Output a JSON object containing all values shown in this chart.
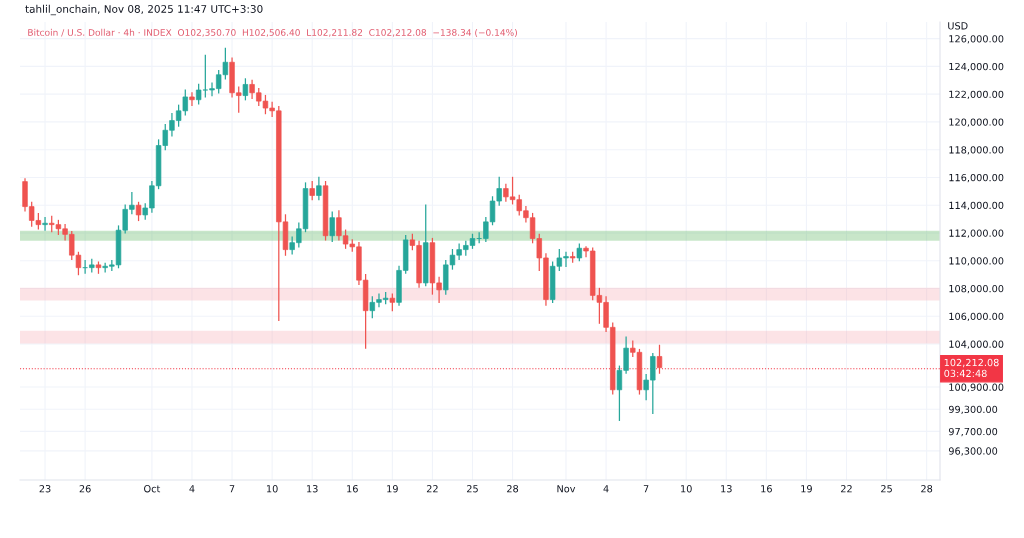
{
  "chart_data": {
    "type": "candlestick",
    "title": "tahlil_onchain, Nov 08, 2025 11:47 UTC+3:30",
    "subtitle": "Bitcoin / U.S. Dollar · 4h · INDEX  O102,350.70  H102,506.40  L102,211.82  C102,212.08  −138.34 (−0.14%)",
    "ylabel": "USD",
    "x": [
      "2025-09-21T12:00",
      "2025-09-22T00:00",
      "2025-09-22T12:00",
      "2025-09-23T00:00",
      "2025-09-23T12:00",
      "2025-09-24T00:00",
      "2025-09-24T12:00",
      "2025-09-25T00:00",
      "2025-09-25T12:00",
      "2025-09-26T00:00",
      "2025-09-26T12:00",
      "2025-09-27T00:00",
      "2025-09-27T12:00",
      "2025-09-28T00:00",
      "2025-09-28T12:00",
      "2025-09-29T00:00",
      "2025-09-29T12:00",
      "2025-09-30T00:00",
      "2025-09-30T12:00",
      "2025-10-01T00:00",
      "2025-10-01T12:00",
      "2025-10-02T00:00",
      "2025-10-02T12:00",
      "2025-10-03T00:00",
      "2025-10-03T12:00",
      "2025-10-04T00:00",
      "2025-10-04T12:00",
      "2025-10-05T00:00",
      "2025-10-05T12:00",
      "2025-10-06T00:00",
      "2025-10-06T12:00",
      "2025-10-07T00:00",
      "2025-10-07T12:00",
      "2025-10-08T00:00",
      "2025-10-08T12:00",
      "2025-10-09T00:00",
      "2025-10-09T12:00",
      "2025-10-10T00:00",
      "2025-10-10T12:00",
      "2025-10-11T00:00",
      "2025-10-11T12:00",
      "2025-10-12T00:00",
      "2025-10-12T12:00",
      "2025-10-13T00:00",
      "2025-10-13T12:00",
      "2025-10-14T00:00",
      "2025-10-14T12:00",
      "2025-10-15T00:00",
      "2025-10-15T12:00",
      "2025-10-16T00:00",
      "2025-10-16T12:00",
      "2025-10-17T00:00",
      "2025-10-17T12:00",
      "2025-10-18T00:00",
      "2025-10-18T12:00",
      "2025-10-19T00:00",
      "2025-10-19T12:00",
      "2025-10-20T00:00",
      "2025-10-20T12:00",
      "2025-10-21T00:00",
      "2025-10-21T12:00",
      "2025-10-22T00:00",
      "2025-10-22T12:00",
      "2025-10-23T00:00",
      "2025-10-23T12:00",
      "2025-10-24T00:00",
      "2025-10-24T12:00",
      "2025-10-25T00:00",
      "2025-10-25T12:00",
      "2025-10-26T00:00",
      "2025-10-26T12:00",
      "2025-10-27T00:00",
      "2025-10-27T12:00",
      "2025-10-28T00:00",
      "2025-10-28T12:00",
      "2025-10-29T00:00",
      "2025-10-29T12:00",
      "2025-10-30T00:00",
      "2025-10-30T12:00",
      "2025-10-31T00:00",
      "2025-10-31T12:00",
      "2025-11-01T00:00",
      "2025-11-01T12:00",
      "2025-11-02T00:00",
      "2025-11-02T12:00",
      "2025-11-03T00:00",
      "2025-11-03T12:00",
      "2025-11-04T00:00",
      "2025-11-04T12:00",
      "2025-11-05T00:00",
      "2025-11-05T12:00",
      "2025-11-06T00:00",
      "2025-11-06T12:00",
      "2025-11-07T00:00",
      "2025-11-07T12:00",
      "2025-11-08T00:00"
    ],
    "ohlc": [
      [
        115700,
        115900,
        113600,
        113900
      ],
      [
        113900,
        114200,
        112500,
        112900
      ],
      [
        112900,
        113400,
        112300,
        112600
      ],
      [
        112600,
        113100,
        112200,
        112700
      ],
      [
        112700,
        113200,
        112100,
        112600
      ],
      [
        112600,
        112900,
        111900,
        112300
      ],
      [
        112300,
        112600,
        111500,
        111900
      ],
      [
        111900,
        112100,
        110100,
        110400
      ],
      [
        110400,
        110600,
        109000,
        109500
      ],
      [
        109500,
        110000,
        109100,
        109500
      ],
      [
        109500,
        110100,
        109200,
        109700
      ],
      [
        109700,
        109900,
        109100,
        109500
      ],
      [
        109500,
        109800,
        109200,
        109600
      ],
      [
        109600,
        110000,
        109300,
        109700
      ],
      [
        109700,
        112500,
        109500,
        112200
      ],
      [
        112200,
        114000,
        112000,
        113700
      ],
      [
        113700,
        114900,
        113400,
        114000
      ],
      [
        114000,
        114200,
        112900,
        113300
      ],
      [
        113300,
        114100,
        113000,
        113800
      ],
      [
        113800,
        115700,
        113500,
        115400
      ],
      [
        115400,
        118700,
        115200,
        118300
      ],
      [
        118300,
        119800,
        118000,
        119400
      ],
      [
        119400,
        120600,
        119000,
        120100
      ],
      [
        120100,
        121200,
        119700,
        120800
      ],
      [
        120800,
        122300,
        120500,
        121800
      ],
      [
        121800,
        122100,
        121200,
        121600
      ],
      [
        121600,
        122700,
        121300,
        122300
      ],
      [
        122300,
        124800,
        121800,
        122300
      ],
      [
        122300,
        122800,
        121900,
        122400
      ],
      [
        122400,
        123700,
        122100,
        123400
      ],
      [
        123400,
        125300,
        123100,
        124300
      ],
      [
        124300,
        124600,
        121800,
        122100
      ],
      [
        122100,
        122500,
        120700,
        121900
      ],
      [
        121900,
        123100,
        121600,
        122700
      ],
      [
        122700,
        123000,
        121700,
        122100
      ],
      [
        122100,
        122400,
        121200,
        121500
      ],
      [
        121500,
        121900,
        120600,
        121000
      ],
      [
        121000,
        121400,
        120400,
        120800
      ],
      [
        120800,
        121100,
        105700,
        112800
      ],
      [
        112800,
        113300,
        110400,
        110800
      ],
      [
        110800,
        111700,
        110500,
        111300
      ],
      [
        111300,
        112700,
        111000,
        112300
      ],
      [
        112300,
        115600,
        112100,
        115200
      ],
      [
        115200,
        115700,
        114400,
        114700
      ],
      [
        114700,
        116000,
        114400,
        115400
      ],
      [
        115400,
        115700,
        111500,
        111800
      ],
      [
        111800,
        113500,
        111400,
        113100
      ],
      [
        113100,
        113600,
        111500,
        111800
      ],
      [
        111800,
        112200,
        110900,
        111200
      ],
      [
        111200,
        111500,
        110700,
        111000
      ],
      [
        111000,
        111300,
        108300,
        108600
      ],
      [
        108600,
        109000,
        103700,
        106400
      ],
      [
        106400,
        107400,
        105900,
        107000
      ],
      [
        107000,
        107600,
        106700,
        107200
      ],
      [
        107200,
        107700,
        106900,
        107300
      ],
      [
        107300,
        107600,
        106400,
        107000
      ],
      [
        107000,
        109600,
        106800,
        109300
      ],
      [
        109300,
        111800,
        109100,
        111500
      ],
      [
        111500,
        111900,
        110800,
        111100
      ],
      [
        111100,
        111400,
        108100,
        108400
      ],
      [
        108400,
        114000,
        108200,
        111300
      ],
      [
        111300,
        111600,
        107600,
        108400
      ],
      [
        108400,
        108800,
        107000,
        107900
      ],
      [
        107900,
        110000,
        107600,
        109700
      ],
      [
        109700,
        110800,
        109400,
        110400
      ],
      [
        110400,
        111200,
        110100,
        110800
      ],
      [
        110800,
        111400,
        110400,
        111100
      ],
      [
        111100,
        111900,
        110900,
        111600
      ],
      [
        111600,
        112000,
        111300,
        111600
      ],
      [
        111600,
        113100,
        111400,
        112800
      ],
      [
        112800,
        114600,
        112600,
        114300
      ],
      [
        114300,
        116000,
        114000,
        115200
      ],
      [
        115200,
        115500,
        114300,
        114600
      ],
      [
        114600,
        116000,
        114100,
        114400
      ],
      [
        114400,
        114700,
        113300,
        113600
      ],
      [
        113600,
        113900,
        112800,
        113100
      ],
      [
        113100,
        113400,
        111300,
        111600
      ],
      [
        111600,
        111900,
        109300,
        110200
      ],
      [
        110200,
        110500,
        106800,
        107200
      ],
      [
        107200,
        109900,
        107000,
        109600
      ],
      [
        109600,
        110800,
        109300,
        110200
      ],
      [
        110200,
        110600,
        109600,
        110300
      ],
      [
        110300,
        110600,
        109900,
        110200
      ],
      [
        110200,
        111200,
        110000,
        110900
      ],
      [
        110900,
        111000,
        110300,
        110700
      ],
      [
        110700,
        110900,
        107200,
        107500
      ],
      [
        107500,
        108000,
        105500,
        107000
      ],
      [
        107000,
        107400,
        104900,
        105200
      ],
      [
        105200,
        105500,
        100400,
        100700
      ],
      [
        100700,
        102400,
        98500,
        102100
      ],
      [
        102100,
        104500,
        101900,
        103700
      ],
      [
        103700,
        104200,
        103100,
        103400
      ],
      [
        103400,
        103600,
        100400,
        100700
      ],
      [
        100700,
        101800,
        100000,
        101400
      ],
      [
        101400,
        103300,
        99000,
        103100
      ],
      [
        103100,
        103900,
        101900,
        102300
      ]
    ],
    "xlim": [
      "2025-09-21T03:00",
      "2025-11-29T00:00"
    ],
    "xticks": [
      {
        "value": "2025-09-23",
        "label": "23"
      },
      {
        "value": "2025-09-26",
        "label": "26"
      },
      {
        "value": "2025-10-01",
        "label": "Oct"
      },
      {
        "value": "2025-10-04",
        "label": "4"
      },
      {
        "value": "2025-10-07",
        "label": "7"
      },
      {
        "value": "2025-10-10",
        "label": "10"
      },
      {
        "value": "2025-10-13",
        "label": "13"
      },
      {
        "value": "2025-10-16",
        "label": "16"
      },
      {
        "value": "2025-10-19",
        "label": "19"
      },
      {
        "value": "2025-10-22",
        "label": "22"
      },
      {
        "value": "2025-10-25",
        "label": "25"
      },
      {
        "value": "2025-10-28",
        "label": "28"
      },
      {
        "value": "2025-11-01",
        "label": "Nov"
      },
      {
        "value": "2025-11-04",
        "label": "4"
      },
      {
        "value": "2025-11-07",
        "label": "7"
      },
      {
        "value": "2025-11-10",
        "label": "10"
      },
      {
        "value": "2025-11-13",
        "label": "13"
      },
      {
        "value": "2025-11-16",
        "label": "16"
      },
      {
        "value": "2025-11-19",
        "label": "19"
      },
      {
        "value": "2025-11-22",
        "label": "22"
      },
      {
        "value": "2025-11-25",
        "label": "25"
      },
      {
        "value": "2025-11-28",
        "label": "28"
      }
    ],
    "ylim": [
      94200,
      127200
    ],
    "yticks": [
      {
        "value": 126000,
        "label": "126,000.00"
      },
      {
        "value": 124000,
        "label": "124,000.00"
      },
      {
        "value": 122000,
        "label": "122,000.00"
      },
      {
        "value": 120000,
        "label": "120,000.00"
      },
      {
        "value": 118000,
        "label": "118,000.00"
      },
      {
        "value": 116000,
        "label": "116,000.00"
      },
      {
        "value": 114000,
        "label": "114,000.00"
      },
      {
        "value": 112000,
        "label": "112,000.00"
      },
      {
        "value": 110000,
        "label": "110,000.00"
      },
      {
        "value": 108000,
        "label": "108,000.00"
      },
      {
        "value": 106000,
        "label": "106,000.00"
      },
      {
        "value": 104000,
        "label": "104,000.00"
      },
      {
        "value": 100900,
        "label": "100,900.00"
      },
      {
        "value": 99300,
        "label": "99,300.00"
      },
      {
        "value": 97700,
        "label": "97,700.00"
      },
      {
        "value": 96300,
        "label": "96,300.00"
      }
    ],
    "bands": [
      {
        "axis": "y",
        "from": 111500,
        "to": 112100,
        "color": "#4caf50"
      },
      {
        "axis": "y",
        "from": 107200,
        "to": 108000,
        "color": "#f7a5ae"
      },
      {
        "axis": "y",
        "from": 104100,
        "to": 104900,
        "color": "#f7a5ae"
      }
    ],
    "ref_lines": [
      {
        "axis": "y",
        "value": 102212.08,
        "label": "102,212.08\n03:42:48",
        "color": "#f23645",
        "line_style": "dotted"
      }
    ],
    "grid": true
  }
}
